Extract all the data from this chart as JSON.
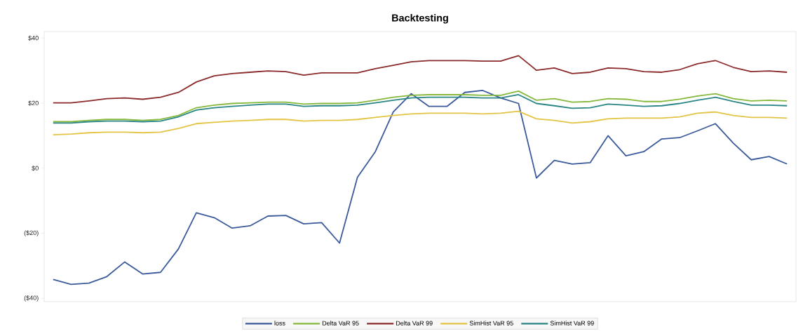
{
  "chart_data": {
    "type": "line",
    "title": "Backtesting",
    "categories": [
      null,
      null,
      null,
      null,
      null,
      null,
      null,
      null,
      null,
      null,
      null,
      null,
      null,
      null,
      null,
      null,
      null,
      null,
      null,
      null,
      null,
      null,
      null,
      null,
      null,
      null,
      null,
      null,
      null,
      null,
      null,
      null,
      null,
      null,
      null,
      null,
      null,
      null,
      null,
      null,
      null,
      null
    ],
    "series": [
      {
        "name": "loss",
        "color": "#3b5a9a",
        "values": [
          -34.2,
          -35.7,
          -35.3,
          -33.3,
          -28.8,
          -32.5,
          -32,
          -24.8,
          -13.7,
          -15.2,
          -18.4,
          -17.7,
          -14.7,
          -14.5,
          -17.1,
          -16.7,
          -23,
          -2.8,
          5.1,
          17.3,
          22.9,
          19,
          19,
          23.3,
          23.9,
          21.6,
          19.9,
          -3,
          2.4,
          1.3,
          1.7,
          10,
          3.8,
          5.1,
          9,
          9.4,
          11.5,
          13.7,
          7.7,
          2.6,
          3.6,
          1.3
        ]
      },
      {
        "name": "Delta VaR 95",
        "color": "#86b83c",
        "values": [
          14.3,
          14.3,
          14.7,
          15,
          15,
          14.7,
          15,
          16.2,
          18.6,
          19.4,
          19.9,
          20.1,
          20.3,
          20.3,
          19.7,
          19.9,
          19.9,
          20.1,
          20.9,
          21.8,
          22.4,
          22.6,
          22.6,
          22.6,
          22.4,
          22.4,
          23.7,
          20.9,
          21.4,
          20.3,
          20.5,
          21.4,
          21.2,
          20.5,
          20.5,
          21.2,
          22.2,
          22.9,
          21.4,
          20.7,
          20.9,
          20.7
        ]
      },
      {
        "name": "Delta VaR 99",
        "color": "#8b2a2a",
        "values": [
          20.1,
          20.1,
          20.7,
          21.4,
          21.6,
          21.2,
          21.8,
          23.3,
          26.5,
          28.4,
          29.1,
          29.5,
          29.9,
          29.7,
          28.6,
          29.3,
          29.3,
          29.3,
          30.6,
          31.6,
          32.7,
          33.1,
          33.1,
          33.1,
          32.9,
          32.9,
          34.6,
          30.1,
          30.8,
          29.1,
          29.5,
          30.8,
          30.6,
          29.7,
          29.5,
          30.3,
          32.1,
          33.1,
          31,
          29.7,
          29.9,
          29.5
        ]
      },
      {
        "name": "SimHist VaR 95",
        "color": "#e3c445",
        "values": [
          10.3,
          10.5,
          10.9,
          11.1,
          11.1,
          10.9,
          11.1,
          12.2,
          13.7,
          14.1,
          14.5,
          14.7,
          15,
          15,
          14.5,
          14.7,
          14.7,
          15,
          15.6,
          16.2,
          16.7,
          16.9,
          16.9,
          16.9,
          16.7,
          16.9,
          17.5,
          15.2,
          14.7,
          13.9,
          14.3,
          15.2,
          15.4,
          15.4,
          15.4,
          15.8,
          16.9,
          17.3,
          16.2,
          15.6,
          15.6,
          15.4
        ]
      },
      {
        "name": "SimHist VaR 99",
        "color": "#2a8585",
        "values": [
          13.9,
          13.9,
          14.3,
          14.5,
          14.5,
          14.3,
          14.5,
          15.8,
          17.9,
          18.6,
          19,
          19.4,
          19.7,
          19.7,
          19,
          19.2,
          19.2,
          19.4,
          20.1,
          20.9,
          21.6,
          21.8,
          21.8,
          21.8,
          21.6,
          21.6,
          22.6,
          19.9,
          19.2,
          18.4,
          18.6,
          19.7,
          19.4,
          19,
          19.2,
          19.9,
          20.9,
          21.8,
          20.5,
          19.4,
          19.4,
          19.2
        ]
      }
    ],
    "ylim": [
      -41,
      42
    ],
    "yticks": [
      {
        "value": -40,
        "label": "($40)"
      },
      {
        "value": -20,
        "label": "($20)"
      },
      {
        "value": 0,
        "label": "$0"
      },
      {
        "value": 20,
        "label": "$20"
      },
      {
        "value": 40,
        "label": "$40"
      }
    ],
    "legend": "bottom",
    "grid": false,
    "marker": "none",
    "line_style": "solid"
  }
}
